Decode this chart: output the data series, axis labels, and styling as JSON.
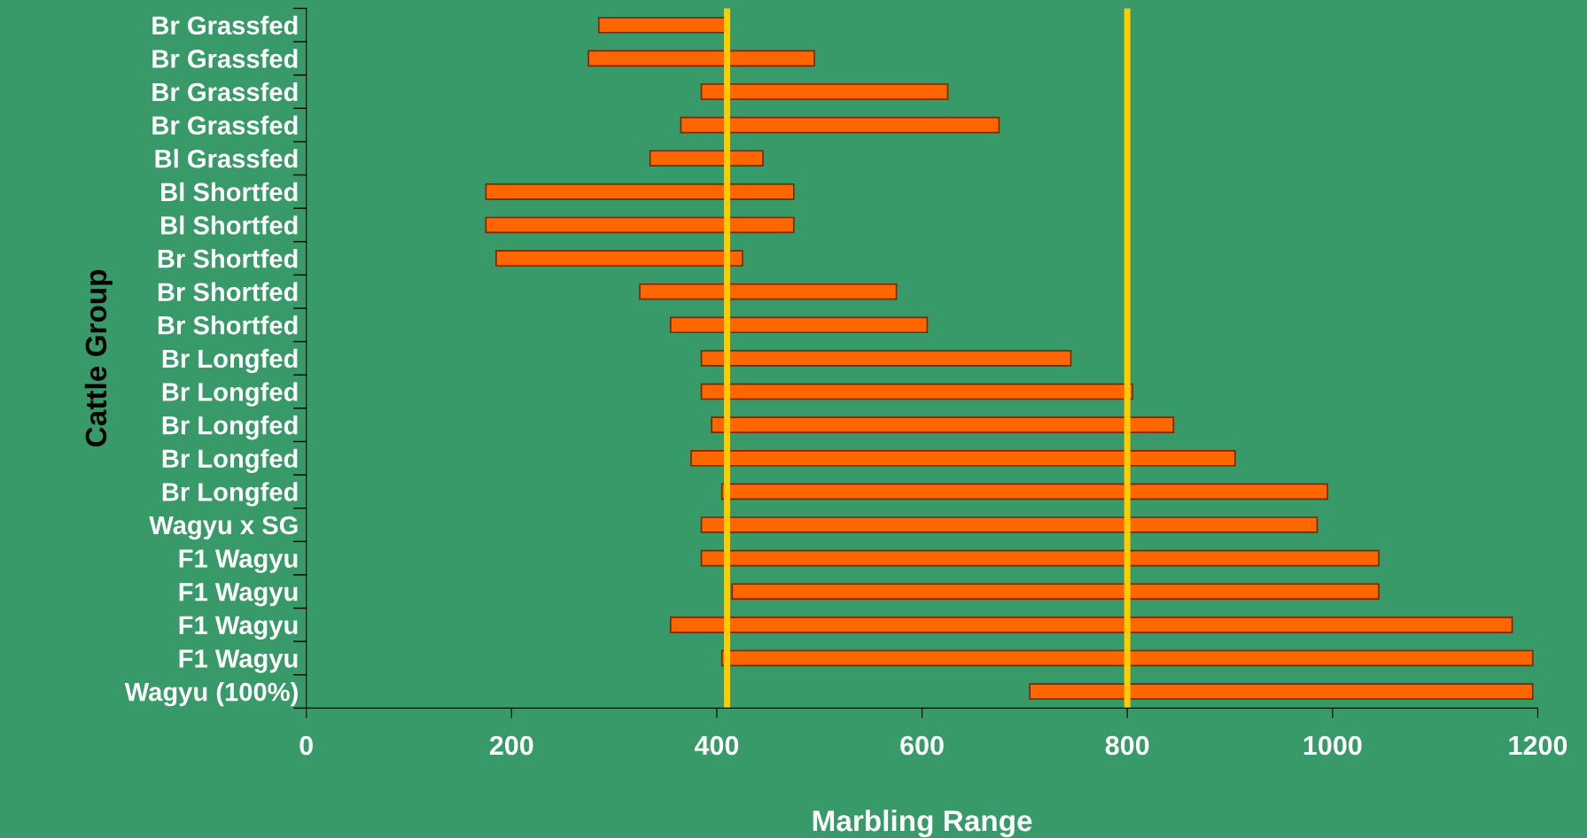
{
  "chart_data": {
    "type": "bar",
    "orientation": "horizontal",
    "xlabel": "Marbling Range",
    "ylabel": "Cattle Group",
    "categories": [
      "Br Grassfed",
      "Br Grassfed",
      "Br Grassfed",
      "Br Grassfed",
      "Bl Grassfed",
      "Bl Shortfed",
      "Bl Shortfed",
      "Br Shortfed",
      "Br Shortfed",
      "Br Shortfed",
      "Br Longfed",
      "Br Longfed",
      "Br Longfed",
      "Br Longfed",
      "Br Longfed",
      "Wagyu x SG",
      "F1 Wagyu",
      "F1 Wagyu",
      "F1 Wagyu",
      "F1 Wagyu",
      "Wagyu (100%)"
    ],
    "base": [
      285,
      275,
      385,
      365,
      335,
      175,
      175,
      185,
      325,
      355,
      385,
      385,
      395,
      375,
      405,
      385,
      385,
      415,
      355,
      405,
      705
    ],
    "values": [
      125,
      220,
      240,
      310,
      110,
      300,
      300,
      240,
      250,
      250,
      360,
      420,
      450,
      530,
      590,
      600,
      660,
      630,
      820,
      790,
      490
    ],
    "color": "#ff6600",
    "xlim": [
      0,
      1200
    ],
    "xticks": [
      0,
      200,
      400,
      600,
      800,
      1000,
      1200
    ],
    "ref_lines": [
      {
        "axis": "x",
        "value": 410,
        "color": "#ffcc00"
      },
      {
        "axis": "x",
        "value": 800,
        "color": "#ffcc00"
      }
    ],
    "grid": false,
    "legend": false
  }
}
